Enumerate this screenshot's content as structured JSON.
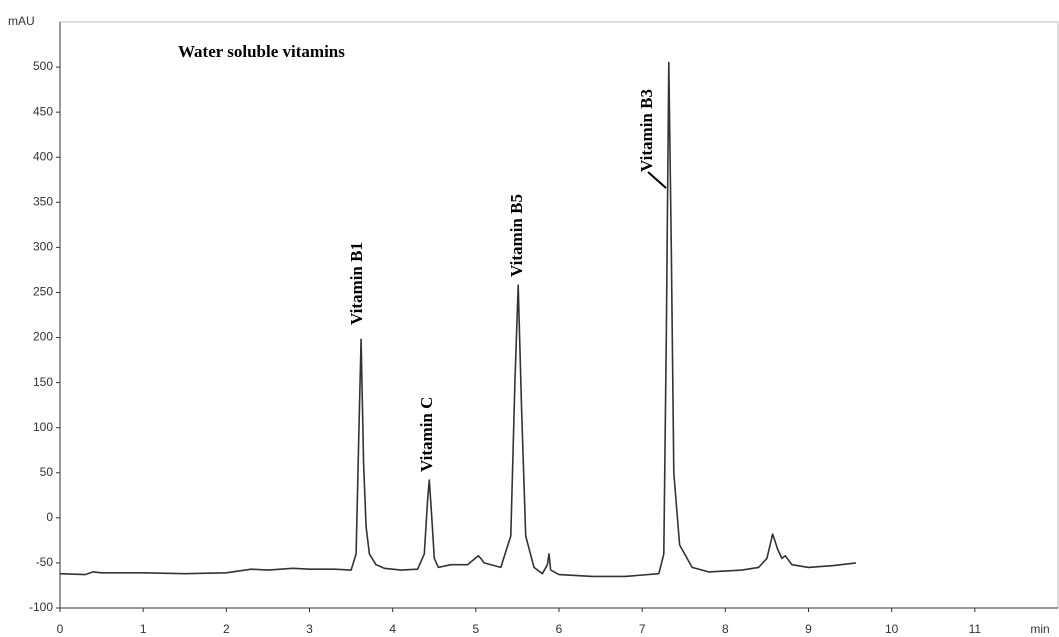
{
  "chart_data": {
    "type": "line",
    "title": "Water soluble vitamins",
    "x_label": "min",
    "y_label": "mAU",
    "annotations": [
      "Vitamin B1",
      "Vitamin C",
      "Vitamin B5",
      "Vitamin B3"
    ],
    "xlim": [
      0,
      12
    ],
    "xticks": [
      0,
      1,
      2,
      3,
      4,
      5,
      6,
      7,
      8,
      9,
      10,
      11
    ],
    "ylim": [
      -100,
      550
    ],
    "yticks": [
      -100,
      -50,
      0,
      50,
      100,
      150,
      200,
      250,
      300,
      350,
      400,
      450,
      500
    ],
    "series": [
      {
        "color": "#333333",
        "x": [
          0,
          0.3,
          0.4,
          0.5,
          1,
          1.5,
          2,
          2.3,
          2.5,
          2.8,
          3,
          3.3,
          3.5,
          3.56,
          3.6,
          3.62,
          3.65,
          3.68,
          3.72,
          3.8,
          3.9,
          4.1,
          4.3,
          4.38,
          4.42,
          4.44,
          4.47,
          4.5,
          4.55,
          4.7,
          4.9,
          5.03,
          5.06,
          5.1,
          5.3,
          5.42,
          5.47,
          5.51,
          5.55,
          5.6,
          5.7,
          5.8,
          5.86,
          5.88,
          5.9,
          6.0,
          6.4,
          6.8,
          7.2,
          7.26,
          7.29,
          7.32,
          7.35,
          7.38,
          7.45,
          7.6,
          7.8,
          8.2,
          8.4,
          8.5,
          8.57,
          8.63,
          8.68,
          8.72,
          8.8,
          9.0,
          9.3,
          9.57
        ],
        "values": [
          -62,
          -63,
          -60,
          -61,
          -61,
          -62,
          -61,
          -57,
          -58,
          -56,
          -57,
          -57,
          -58,
          -40,
          120,
          198,
          60,
          -10,
          -40,
          -52,
          -56,
          -58,
          -57,
          -40,
          20,
          42,
          0,
          -45,
          -55,
          -52,
          -52,
          -42,
          -45,
          -50,
          -55,
          -20,
          150,
          258,
          120,
          -20,
          -55,
          -62,
          -52,
          -40,
          -58,
          -63,
          -65,
          -65,
          -62,
          -40,
          200,
          505,
          300,
          50,
          -30,
          -55,
          -60,
          -58,
          -55,
          -45,
          -18,
          -35,
          -45,
          -42,
          -52,
          -55,
          -53,
          -50
        ]
      }
    ]
  }
}
